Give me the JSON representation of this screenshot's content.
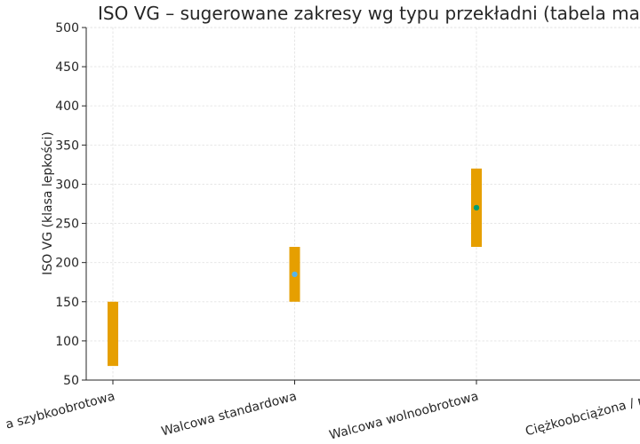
{
  "chart_data": {
    "type": "range-bar",
    "title": "ISO VG – sugerowane zakresy wg typu przekładni (tabela managa",
    "ylabel": "ISO VG (klasa lepkości)",
    "xlabel": "",
    "ylim": [
      50,
      500
    ],
    "yticks": [
      50,
      100,
      150,
      200,
      250,
      300,
      350,
      400,
      450,
      500
    ],
    "grid": true,
    "categories": [
      "a szybkoobrotowa",
      "Walcowa standardowa",
      "Walcowa wolnoobrotowa",
      "Ciężkoobciążona / mły"
    ],
    "ranges": [
      {
        "low": 68,
        "high": 150
      },
      {
        "low": 150,
        "high": 220
      },
      {
        "low": 220,
        "high": 320
      },
      null
    ],
    "points": [
      null,
      {
        "value": 185,
        "color": "#56b4e9"
      },
      {
        "value": 270,
        "color": "#009e73"
      },
      null
    ],
    "bar_color": "#e69f00"
  }
}
